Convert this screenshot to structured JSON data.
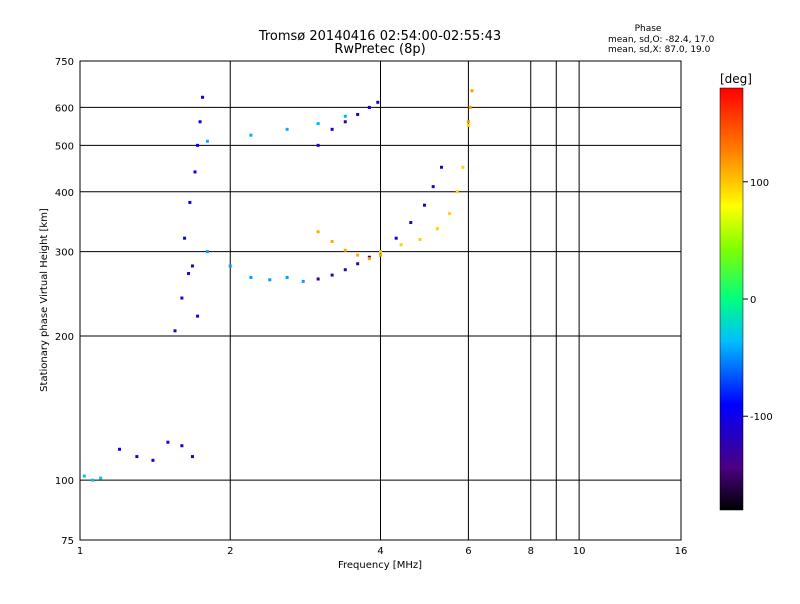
{
  "header": {
    "title_line1": "Tromsø 20140416 02:54:00-02:55:43",
    "title_line2": "RwPretec (8p)"
  },
  "phase_info": {
    "title": "Phase",
    "line_o": "mean, sd,O: -82.4, 17.0",
    "line_x": "mean, sd,X:  87.0, 19.0"
  },
  "chart_data": {
    "type": "scatter",
    "title": "Tromsø 20140416 02:54:00-02:55:43",
    "subtitle": "RwPretec (8p)",
    "xlabel": "Frequency [MHz]",
    "ylabel": "Stationary phase Virtual Height [km]",
    "x_scale": "log",
    "y_scale": "log",
    "xlim": [
      1,
      16
    ],
    "ylim": [
      75,
      750
    ],
    "x_ticks": [
      1,
      2,
      4,
      6,
      8,
      10,
      16
    ],
    "x_tick_labels": [
      "1",
      "2",
      "4",
      "6",
      "8",
      "10",
      "16"
    ],
    "x_minor_gridlines": [
      9
    ],
    "y_ticks": [
      75,
      100,
      200,
      300,
      400,
      500,
      600,
      750
    ],
    "y_tick_labels": [
      "75",
      "100",
      "200",
      "300",
      "400",
      "500",
      "600",
      "750"
    ],
    "grid": true,
    "colorbar": {
      "label": "[deg]",
      "range": [
        -180,
        180
      ],
      "ticks": [
        100,
        0,
        -100
      ],
      "tick_labels": [
        "100",
        "0",
        "-100"
      ]
    },
    "series": [
      {
        "name": "Phase",
        "traces": [
          {
            "x": [
              1.02,
              1.06,
              1.1
            ],
            "y": [
              102,
              100,
              101
            ],
            "phase": -35
          },
          {
            "x": [
              1.2,
              1.3,
              1.4,
              1.5,
              1.6,
              1.68
            ],
            "y": [
              116,
              112,
              110,
              120,
              118,
              112
            ],
            "phase": -105
          },
          {
            "x": [
              1.55,
              1.6,
              1.65,
              1.68,
              1.72
            ],
            "y": [
              205,
              240,
              270,
              280,
              220
            ],
            "phase": -115
          },
          {
            "x": [
              1.62,
              1.66,
              1.7,
              1.72,
              1.74,
              1.76
            ],
            "y": [
              320,
              380,
              440,
              500,
              560,
              630
            ],
            "phase": -95
          },
          {
            "x": [
              1.8,
              2.0,
              2.2,
              2.4,
              2.6,
              2.8
            ],
            "y": [
              300,
              280,
              265,
              262,
              265,
              260
            ],
            "phase": -45
          },
          {
            "x": [
              1.8,
              2.2,
              2.6,
              3.0,
              3.4,
              3.8
            ],
            "y": [
              510,
              525,
              540,
              555,
              575,
              600
            ],
            "phase": -40
          },
          {
            "x": [
              3.0,
              3.2,
              3.4,
              3.6,
              3.8,
              3.95
            ],
            "y": [
              500,
              540,
              560,
              580,
              600,
              615
            ],
            "phase": -110
          },
          {
            "x": [
              3.0,
              3.2,
              3.4,
              3.6,
              3.8,
              4.0
            ],
            "y": [
              263,
              268,
              275,
              283,
              292,
              300
            ],
            "phase": -125
          },
          {
            "x": [
              4.0,
              4.3,
              4.6,
              4.9,
              5.1,
              5.3
            ],
            "y": [
              300,
              320,
              345,
              375,
              410,
              450
            ],
            "phase": -115
          },
          {
            "x": [
              4.0,
              4.4,
              4.8,
              5.2,
              5.5,
              5.7,
              5.85,
              6.0
            ],
            "y": [
              300,
              310,
              318,
              335,
              360,
              400,
              450,
              550
            ],
            "phase": 95
          },
          {
            "x": [
              3.0,
              3.2,
              3.4,
              3.6,
              3.8,
              4.0
            ],
            "y": [
              330,
              315,
              302,
              295,
              290,
              295
            ],
            "phase": 110
          },
          {
            "x": [
              6.0,
              6.05,
              6.1
            ],
            "y": [
              560,
              600,
              650
            ],
            "phase": 115
          }
        ]
      }
    ]
  }
}
